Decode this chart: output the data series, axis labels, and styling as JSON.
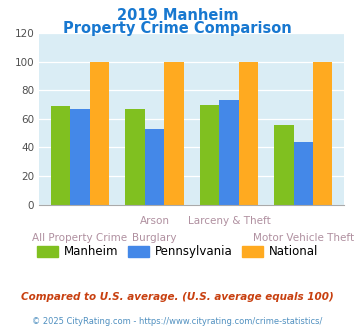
{
  "title_line1": "2019 Manheim",
  "title_line2": "Property Crime Comparison",
  "top_labels": [
    "",
    "Arson",
    "Larceny & Theft",
    ""
  ],
  "bot_labels": [
    "All Property Crime",
    "Burglary",
    "",
    "Motor Vehicle Theft"
  ],
  "series": {
    "Manheim": [
      69,
      67,
      70,
      56
    ],
    "Pennsylvania": [
      67,
      53,
      73,
      44
    ],
    "National": [
      100,
      100,
      100,
      100
    ]
  },
  "colors": {
    "Manheim": "#80c020",
    "Pennsylvania": "#4488e8",
    "National": "#ffaa20"
  },
  "ylim": [
    0,
    120
  ],
  "yticks": [
    0,
    20,
    40,
    60,
    80,
    100,
    120
  ],
  "title_color": "#1878d0",
  "xlabel_color": "#b090a0",
  "background_color": "#daedf5",
  "footnote1": "Compared to U.S. average. (U.S. average equals 100)",
  "footnote2": "© 2025 CityRating.com - https://www.cityrating.com/crime-statistics/",
  "footnote1_color": "#c84010",
  "footnote2_color": "#5090c0"
}
